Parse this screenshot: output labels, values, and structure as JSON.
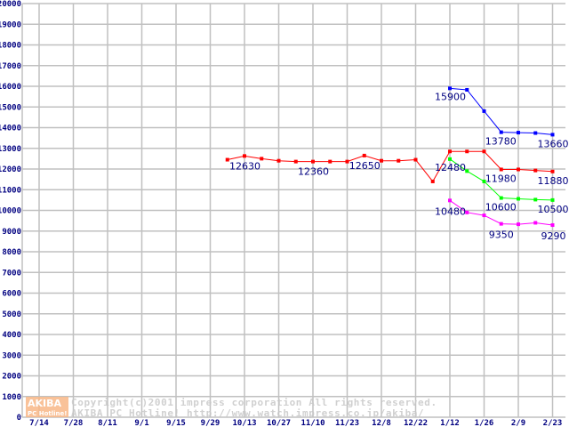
{
  "chart_data": {
    "type": "line",
    "title": "",
    "xlabel": "",
    "ylabel": "",
    "ylim": [
      0,
      20000
    ],
    "y_ticks": [
      0,
      1000,
      2000,
      3000,
      4000,
      5000,
      6000,
      7000,
      8000,
      9000,
      10000,
      11000,
      12000,
      13000,
      14000,
      15000,
      16000,
      17000,
      18000,
      19000,
      20000
    ],
    "x_tick_labels": [
      "7/14",
      "7/28",
      "8/11",
      "9/1",
      "9/15",
      "9/29",
      "10/13",
      "10/27",
      "11/10",
      "11/23",
      "12/8",
      "12/22",
      "1/12",
      "1/26",
      "2/9",
      "2/23"
    ],
    "x_note": "x values are half-step indices between tick labels (0 = 7/14, 2 = 7/28, ...)",
    "grid": true,
    "series": [
      {
        "name": "red",
        "color": "#ff0000",
        "x": [
          11,
          12,
          13,
          14,
          15,
          16,
          17,
          18,
          19,
          20,
          21,
          22,
          23,
          24,
          25,
          26,
          27,
          28,
          29,
          30
        ],
        "values": [
          12450,
          12630,
          12500,
          12400,
          12360,
          12360,
          12360,
          12360,
          12650,
          12400,
          12400,
          12450,
          11400,
          12850,
          12850,
          12850,
          11980,
          11980,
          11930,
          11880
        ]
      },
      {
        "name": "blue",
        "color": "#0000ff",
        "x": [
          24,
          25,
          26,
          27,
          28,
          29,
          30
        ],
        "values": [
          15900,
          15830,
          14800,
          13780,
          13760,
          13740,
          13660
        ]
      },
      {
        "name": "green",
        "color": "#00ff00",
        "x": [
          24,
          25,
          26,
          27,
          28,
          29,
          30
        ],
        "values": [
          12480,
          11900,
          11400,
          10600,
          10560,
          10520,
          10500
        ]
      },
      {
        "name": "magenta",
        "color": "#ff00ff",
        "x": [
          24,
          25,
          26,
          27,
          28,
          29,
          30
        ],
        "values": [
          10480,
          9900,
          9760,
          9350,
          9330,
          9400,
          9290
        ]
      }
    ],
    "annotations": [
      {
        "series": 0,
        "point": 1,
        "text": "12630"
      },
      {
        "series": 0,
        "point": 5,
        "text": "12360"
      },
      {
        "series": 0,
        "point": 8,
        "text": "12650"
      },
      {
        "series": 2,
        "point": 0,
        "text": "12480"
      },
      {
        "series": 1,
        "point": 0,
        "text": "15900"
      },
      {
        "series": 1,
        "point": 3,
        "text": "13780"
      },
      {
        "series": 1,
        "point": 6,
        "text": "13660"
      },
      {
        "series": 0,
        "point": 16,
        "text": "11980"
      },
      {
        "series": 0,
        "point": 19,
        "text": "11880"
      },
      {
        "series": 2,
        "point": 3,
        "text": "10600"
      },
      {
        "series": 2,
        "point": 6,
        "text": "10500"
      },
      {
        "series": 3,
        "point": 0,
        "text": "10480"
      },
      {
        "series": 3,
        "point": 3,
        "text": "9350"
      },
      {
        "series": 3,
        "point": 6,
        "text": "9290"
      }
    ]
  },
  "watermark": {
    "logo_top": "AKIBA",
    "logo_bottom": "PC Hotline!",
    "line1": "Copyright(c)2001 impress corporation All rights reserved.",
    "line2": "AKIBA PC Hotline!  http://www.watch.impress.co.jp/akiba/"
  }
}
